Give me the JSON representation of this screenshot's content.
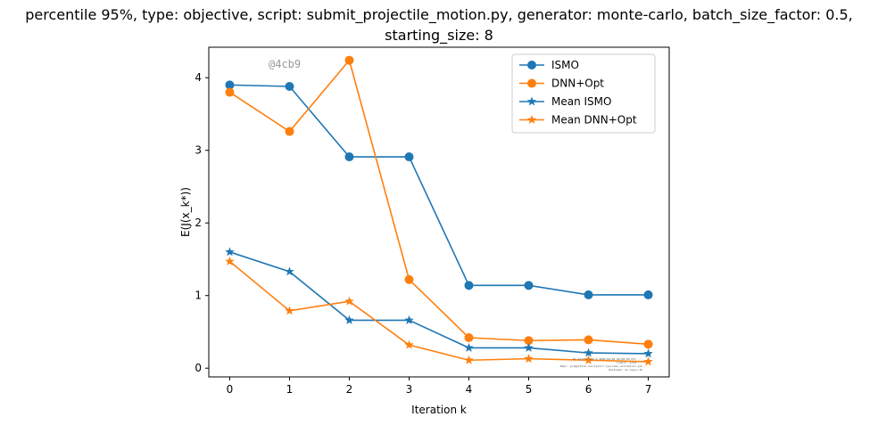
{
  "chart_data": {
    "type": "line",
    "title_line1": "percentile 95%, type: objective, script: submit_projectile_motion.py, generator: monte-carlo, batch_size_factor: 0.5,",
    "title_line2": "starting_size: 8",
    "xlabel": "Iteration k",
    "ylabel": "E(J(x_k*))",
    "x": [
      0,
      1,
      2,
      3,
      4,
      5,
      6,
      7
    ],
    "xlim": [
      -0.35,
      7.35
    ],
    "ylim": [
      -0.12,
      4.42
    ],
    "xticks": [
      "0",
      "1",
      "2",
      "3",
      "4",
      "5",
      "6",
      "7"
    ],
    "yticks": [
      "0",
      "1",
      "2",
      "3",
      "4"
    ],
    "grid": false,
    "legend_position": "upper right",
    "series": [
      {
        "name": "ISMO",
        "color": "#1f77b4",
        "marker": "circle",
        "values": [
          3.9,
          3.88,
          2.91,
          2.91,
          1.14,
          1.14,
          1.01,
          1.01
        ]
      },
      {
        "name": "DNN+Opt",
        "color": "#ff7f0e",
        "marker": "circle",
        "values": [
          3.8,
          3.26,
          4.24,
          1.22,
          0.42,
          0.38,
          0.39,
          0.33
        ]
      },
      {
        "name": "Mean ISMO",
        "color": "#1f77b4",
        "marker": "star",
        "values": [
          1.6,
          1.33,
          0.66,
          0.66,
          0.28,
          0.28,
          0.21,
          0.2
        ]
      },
      {
        "name": "Mean DNN+Opt",
        "color": "#ff7f0e",
        "marker": "star",
        "values": [
          1.47,
          0.79,
          0.92,
          0.32,
          0.11,
          0.13,
          0.11,
          0.09
        ]
      }
    ],
    "annotations": {
      "watermark": "@4cb9",
      "footnote_lines": [
        "By Kjetil Lye @ 2020-02-09 00:00:00 UTC ...",
        "Commit: 4cb9 ...",
        "Repo: git@github.com:kjetil-lye/ismo_validation.git",
        "Hostname: ex-login-10"
      ]
    }
  }
}
